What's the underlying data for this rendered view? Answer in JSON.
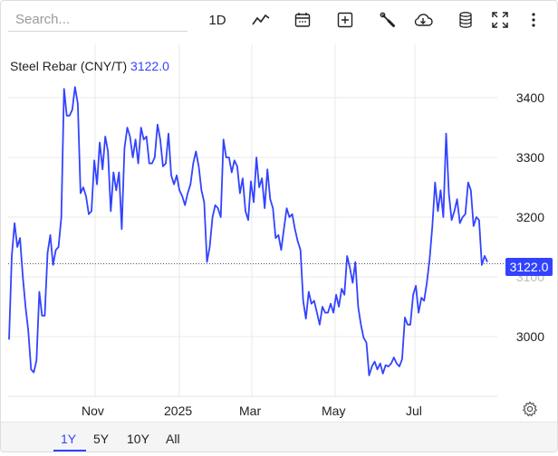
{
  "toolbar": {
    "search_placeholder": "Search...",
    "interval_label": "1D",
    "icons": [
      "line-chart-icon",
      "calendar-icon",
      "add-indicator-icon",
      "settings-wrench-icon",
      "cloud-download-icon",
      "database-icon",
      "fullscreen-icon",
      "more-vertical-icon"
    ]
  },
  "symbol": {
    "name": "Steel Rebar (CNY/T)",
    "last_value": "3122.0"
  },
  "colors": {
    "line": "#3243ff",
    "accent": "#3243ff",
    "grid": "#e8e8e8"
  },
  "chart_data": {
    "type": "line",
    "title": "",
    "series": [
      {
        "name": "Steel Rebar (CNY/T)",
        "values": [
          2995,
          3135,
          3190,
          3150,
          3165,
          3100,
          3050,
          3010,
          2945,
          2940,
          2960,
          3075,
          3035,
          3035,
          3140,
          3170,
          3120,
          3145,
          3150,
          3200,
          3415,
          3370,
          3370,
          3380,
          3418,
          3390,
          3240,
          3250,
          3235,
          3205,
          3210,
          3295,
          3255,
          3325,
          3280,
          3335,
          3310,
          3210,
          3275,
          3245,
          3275,
          3180,
          3315,
          3350,
          3335,
          3300,
          3330,
          3290,
          3350,
          3330,
          3335,
          3290,
          3290,
          3300,
          3355,
          3330,
          3285,
          3290,
          3340,
          3270,
          3255,
          3270,
          3245,
          3235,
          3220,
          3240,
          3255,
          3290,
          3310,
          3285,
          3245,
          3225,
          3125,
          3150,
          3200,
          3220,
          3215,
          3200,
          3330,
          3300,
          3300,
          3275,
          3295,
          3285,
          3240,
          3265,
          3210,
          3195,
          3260,
          3225,
          3300,
          3250,
          3265,
          3215,
          3280,
          3230,
          3215,
          3165,
          3170,
          3145,
          3180,
          3215,
          3200,
          3205,
          3180,
          3160,
          3145,
          3060,
          3030,
          3075,
          3055,
          3060,
          3040,
          3020,
          3050,
          3040,
          3040,
          3055,
          3040,
          3070,
          3050,
          3080,
          3070,
          3135,
          3115,
          3090,
          3125,
          3050,
          3020,
          2998,
          2990,
          2935,
          2950,
          2958,
          2945,
          2955,
          2938,
          2952,
          2950,
          2955,
          2965,
          2955,
          2950,
          2962,
          3032,
          3020,
          3020,
          3070,
          3085,
          3040,
          3065,
          3060,
          3090,
          3130,
          3185,
          3258,
          3210,
          3245,
          3200,
          3340,
          3240,
          3195,
          3210,
          3230,
          3190,
          3200,
          3205,
          3258,
          3245,
          3185,
          3200,
          3195,
          3120,
          3135,
          3125
        ]
      }
    ],
    "x_ticks": [
      "Nov",
      "2025",
      "Mar",
      "May",
      "Jul"
    ],
    "y_ticks": [
      "3000",
      "3100",
      "3200",
      "3300",
      "3400"
    ],
    "ylim": [
      2925,
      3425
    ],
    "last_value": 3122.0,
    "grid": true,
    "xlabel": "",
    "ylabel": ""
  },
  "ranges": [
    {
      "label": "1Y",
      "active": true
    },
    {
      "label": "5Y",
      "active": false
    },
    {
      "label": "10Y",
      "active": false
    },
    {
      "label": "All",
      "active": false
    }
  ]
}
